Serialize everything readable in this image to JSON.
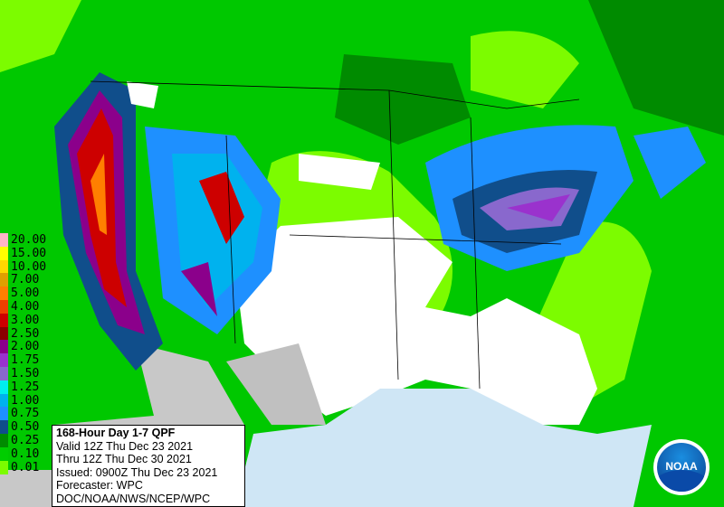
{
  "legend": {
    "items": [
      {
        "label": "20.00",
        "color": "#ffb4c8"
      },
      {
        "label": "15.00",
        "color": "#ffff00"
      },
      {
        "label": "10.00",
        "color": "#ffd700"
      },
      {
        "label": "7.00",
        "color": "#e0a000"
      },
      {
        "label": "5.00",
        "color": "#ff7f00"
      },
      {
        "label": "4.00",
        "color": "#ee4000"
      },
      {
        "label": "3.00",
        "color": "#cd0000"
      },
      {
        "label": "2.50",
        "color": "#8b0000"
      },
      {
        "label": "2.00",
        "color": "#8b008b"
      },
      {
        "label": "1.75",
        "color": "#9a32cd"
      },
      {
        "label": "1.50",
        "color": "#8968cd"
      },
      {
        "label": "1.25",
        "color": "#00eeee"
      },
      {
        "label": "1.00",
        "color": "#00b2ee"
      },
      {
        "label": "0.75",
        "color": "#1e90ff"
      },
      {
        "label": "0.50",
        "color": "#104e8b"
      },
      {
        "label": "0.25",
        "color": "#008b00"
      },
      {
        "label": "0.10",
        "color": "#00cd00"
      },
      {
        "label": "0.01",
        "color": "#7cfc00"
      }
    ]
  },
  "info": {
    "title": "168-Hour Day 1-7 QPF",
    "lines": [
      "Valid 12Z Thu Dec 23 2021",
      "Thru 12Z Thu Dec 30 2021",
      "Issued: 0900Z Thu Dec 23 2021",
      "Forecaster: WPC",
      "DOC/NOAA/NWS/NCEP/WPC"
    ]
  },
  "logo": {
    "text": "NOAA"
  }
}
